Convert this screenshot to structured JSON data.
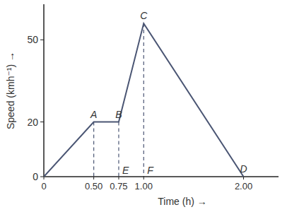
{
  "chart_data": {
    "type": "line",
    "x_label": "Time (h) →",
    "y_label": "Speed (kmh⁻¹) →",
    "x": [
      0,
      0.5,
      0.75,
      1.0,
      2.0
    ],
    "values": [
      0,
      20,
      20,
      56,
      0
    ],
    "color": "#4a5573",
    "xlim": [
      0,
      2.35
    ],
    "ylim": [
      0,
      63
    ],
    "xticks": [
      0,
      {
        "value": 0.5,
        "label": "0.50"
      },
      {
        "value": 0.75,
        "label": "0.75"
      },
      {
        "value": 1,
        "label": "1.00"
      },
      {
        "value": 2,
        "label": "2.00"
      }
    ],
    "yticks": [
      0,
      20,
      50
    ],
    "annotations": [
      {
        "text": "A",
        "x": 0.5,
        "y": 20
      },
      {
        "text": "B",
        "x": 0.75,
        "y": 20
      },
      {
        "text": "C",
        "x": 1.0,
        "y": 56
      },
      {
        "text": "D",
        "x": 2.0,
        "y": 0
      },
      {
        "text": "E",
        "x": 0.75,
        "y": 0
      },
      {
        "text": "F",
        "x": 1.0,
        "y": 0
      }
    ]
  }
}
